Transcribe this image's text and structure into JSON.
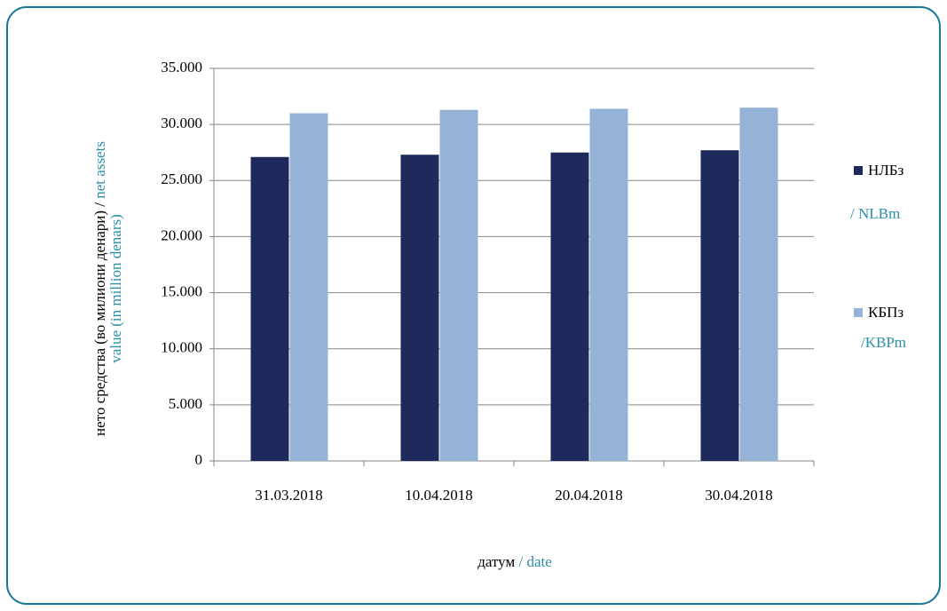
{
  "chart_data": {
    "type": "bar",
    "categories": [
      "31.03.2018",
      "10.04.2018",
      "20.04.2018",
      "30.04.2018"
    ],
    "series": [
      {
        "name": "НЛБз",
        "name_en": "/ NLBm",
        "color": "#1f2a5c",
        "values": [
          27100,
          27300,
          27500,
          27700
        ]
      },
      {
        "name": "КБПз",
        "name_en": "/KBPm",
        "color": "#95b3d7",
        "values": [
          31000,
          31300,
          31400,
          31500
        ]
      }
    ],
    "ylim": [
      0,
      35000
    ],
    "yticks": [
      0,
      {
        "value": 5000,
        "label": "5.000"
      },
      {
        "value": 10000,
        "label": "10.000"
      },
      {
        "value": 15000,
        "label": "15.000"
      },
      {
        "value": 20000,
        "label": "20.000"
      },
      {
        "value": 25000,
        "label": "25.000"
      },
      {
        "value": 30000,
        "label": "30.000"
      },
      {
        "value": 35000,
        "label": "35.000"
      }
    ],
    "grid": true,
    "ylabel_mk": "нето средства (во милиони денари) / ",
    "ylabel_en_1": "net assets",
    "ylabel_en_2": "value (in million denars)",
    "xlabel_mk": "датум ",
    "xlabel_en": "/ date",
    "legend": "right"
  }
}
